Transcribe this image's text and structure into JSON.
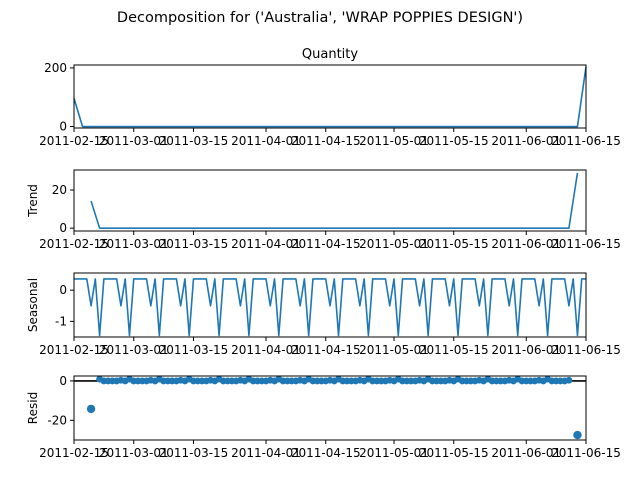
{
  "suptitle": "Decomposition for ('Australia', 'WRAP POPPIES  DESIGN')",
  "x_tick_labels": [
    "2011-02-15",
    "2011-03-01",
    "2011-03-15",
    "2011-04-01",
    "2011-04-15",
    "2011-05-01",
    "2011-05-15",
    "2011-06-01",
    "2011-06-15"
  ],
  "colors": {
    "line": "#1f77b4",
    "zero_line": "#000000"
  },
  "chart_data": [
    {
      "type": "line",
      "title": "Quantity",
      "ylabel": "",
      "xlim": [
        "2011-02-15",
        "2011-06-15"
      ],
      "ylim": [
        -5,
        210
      ],
      "yticks": [
        0,
        200
      ],
      "points": [
        [
          "2011-02-15",
          96
        ],
        [
          "2011-02-17",
          0
        ],
        [
          "2011-06-13",
          0
        ],
        [
          "2011-06-15",
          204
        ]
      ]
    },
    {
      "type": "line",
      "title": "",
      "ylabel": "Trend",
      "xlim": [
        "2011-02-15",
        "2011-06-15"
      ],
      "ylim": [
        -1.5,
        30.5
      ],
      "yticks": [
        0,
        20
      ],
      "points": [
        [
          "2011-02-19",
          14.2
        ],
        [
          "2011-02-21",
          0
        ],
        [
          "2011-06-11",
          0
        ],
        [
          "2011-06-13",
          29
        ]
      ]
    },
    {
      "type": "line",
      "title": "",
      "ylabel": "Seasonal",
      "xlim": [
        "2011-02-15",
        "2011-06-15"
      ],
      "ylim": [
        -1.5,
        0.55
      ],
      "yticks": [
        -1,
        0
      ],
      "period_days": 7,
      "weekly_pattern": [
        0.36,
        0.36,
        0.36,
        0.36,
        -0.5,
        0.36,
        -1.45
      ],
      "pattern_start": "2011-02-15"
    },
    {
      "type": "scatter",
      "title": "",
      "ylabel": "Resid",
      "xlim": [
        "2011-02-15",
        "2011-06-15"
      ],
      "ylim": [
        -30,
        2.5
      ],
      "yticks": [
        -20,
        0
      ],
      "zero_line": true,
      "outliers": [
        [
          "2011-02-19",
          -14.2
        ],
        [
          "2011-06-13",
          -27.5
        ]
      ],
      "near_zero_range": [
        "2011-02-21",
        "2011-06-11"
      ]
    }
  ]
}
